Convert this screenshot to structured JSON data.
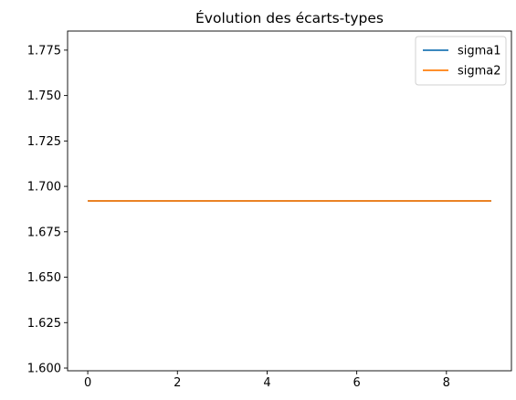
{
  "chart_data": {
    "type": "line",
    "title": "Évolution des écarts-types",
    "xlabel": "",
    "ylabel": "",
    "x": [
      0,
      1,
      2,
      3,
      4,
      5,
      6,
      7,
      8,
      9
    ],
    "series": [
      {
        "name": "sigma1",
        "color": "#1f77b4",
        "values": [
          1.692,
          1.692,
          1.692,
          1.692,
          1.692,
          1.692,
          1.692,
          1.692,
          1.692,
          1.692
        ]
      },
      {
        "name": "sigma2",
        "color": "#ff7f0e",
        "values": [
          1.692,
          1.692,
          1.692,
          1.692,
          1.692,
          1.692,
          1.692,
          1.692,
          1.692,
          1.692
        ]
      }
    ],
    "xlim": [
      -0.45,
      9.45
    ],
    "ylim": [
      1.5985,
      1.7855
    ],
    "xticks": [
      0,
      2,
      4,
      6,
      8
    ],
    "xtick_labels": [
      "0",
      "2",
      "4",
      "6",
      "8"
    ],
    "yticks": [
      1.6,
      1.625,
      1.65,
      1.675,
      1.7,
      1.725,
      1.75,
      1.775
    ],
    "ytick_labels": [
      "1.600",
      "1.625",
      "1.650",
      "1.675",
      "1.700",
      "1.725",
      "1.750",
      "1.775"
    ],
    "grid": false,
    "legend_position": "top-right"
  }
}
